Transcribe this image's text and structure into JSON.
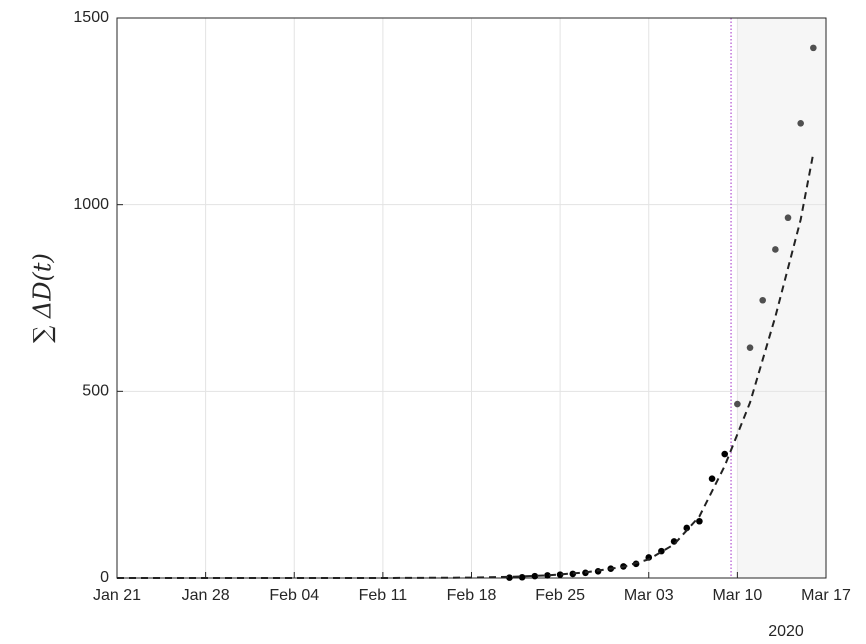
{
  "chart_data": {
    "type": "scatter",
    "ylabel": "∑ ΔD(t)",
    "x_year_label": "2020",
    "xlim": [
      "2020-01-21",
      "2020-03-17"
    ],
    "xticks": [
      {
        "value": "2020-01-21",
        "label": "Jan 21"
      },
      {
        "value": "2020-01-28",
        "label": "Jan 28"
      },
      {
        "value": "2020-02-04",
        "label": "Feb 04"
      },
      {
        "value": "2020-02-11",
        "label": "Feb 11"
      },
      {
        "value": "2020-02-18",
        "label": "Feb 18"
      },
      {
        "value": "2020-02-25",
        "label": "Feb 25"
      },
      {
        "value": "2020-03-03",
        "label": "Mar 03"
      },
      {
        "value": "2020-03-10",
        "label": "Mar 10"
      },
      {
        "value": "2020-03-17",
        "label": "Mar 17"
      }
    ],
    "ylim": [
      0,
      1500
    ],
    "yticks": [
      0,
      500,
      1000,
      1500
    ],
    "grid": true,
    "forecast_region": {
      "start": "2020-03-10",
      "color": "#f6f6f6"
    },
    "cutoff_line": {
      "x": "2020-03-09T12:00",
      "color": "#b050d0"
    },
    "series": [
      {
        "type": "scatter",
        "color": "#000000",
        "x": [
          "2020-02-21",
          "2020-02-22",
          "2020-02-23",
          "2020-02-24",
          "2020-02-25",
          "2020-02-26",
          "2020-02-27",
          "2020-02-28",
          "2020-02-29",
          "2020-03-01",
          "2020-03-02",
          "2020-03-03",
          "2020-03-04",
          "2020-03-05",
          "2020-03-06",
          "2020-03-07",
          "2020-03-08",
          "2020-03-09"
        ],
        "values": [
          1,
          2,
          5,
          7,
          9,
          11,
          14,
          18,
          25,
          31,
          38,
          55,
          72,
          98,
          134,
          152,
          266,
          332
        ]
      },
      {
        "type": "scatter",
        "color": "#505050",
        "x": [
          "2020-03-10",
          "2020-03-11",
          "2020-03-12",
          "2020-03-13",
          "2020-03-14",
          "2020-03-15",
          "2020-03-16"
        ],
        "values": [
          466,
          617,
          744,
          880,
          965,
          1218,
          1420
        ]
      },
      {
        "type": "line",
        "color": "#222222",
        "dashed": true,
        "x": [
          "2020-01-21",
          "2020-02-04",
          "2020-02-11",
          "2020-02-18",
          "2020-02-21",
          "2020-02-24",
          "2020-02-27",
          "2020-03-01",
          "2020-03-03",
          "2020-03-05",
          "2020-03-07",
          "2020-03-09",
          "2020-03-11",
          "2020-03-13",
          "2020-03-15",
          "2020-03-16"
        ],
        "values": [
          0,
          0,
          0,
          1,
          3,
          7,
          15,
          30,
          50,
          90,
          165,
          300,
          470,
          700,
          960,
          1138
        ]
      }
    ]
  }
}
